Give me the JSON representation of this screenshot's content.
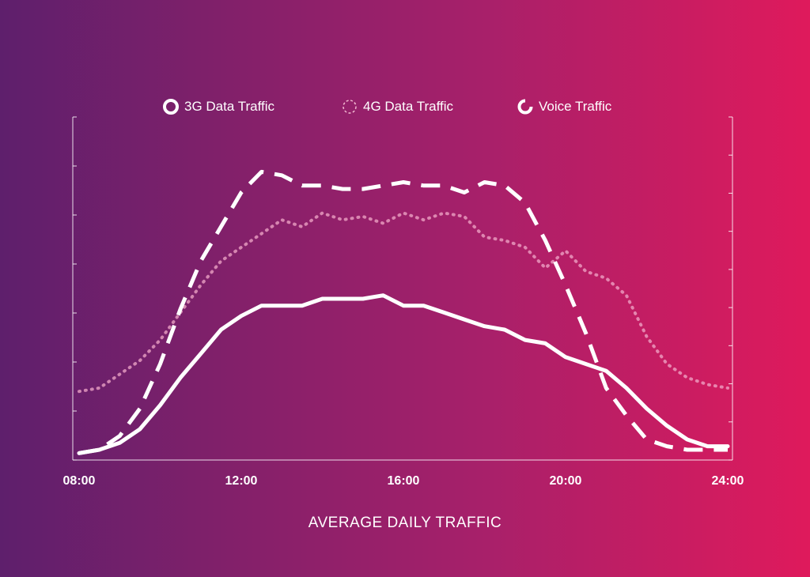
{
  "chart_data": {
    "type": "line",
    "title": "AVERAGE DAILY TRAFFIC",
    "xlabel": "",
    "ylabel": "",
    "x_tick_labels": [
      "08:00",
      "12:00",
      "16:00",
      "20:00",
      "24:00"
    ],
    "xlim": [
      8,
      24
    ],
    "ylim": [
      0,
      100
    ],
    "grid": false,
    "legend_position": "top",
    "colors": {
      "background_start": "#5e1f6c",
      "background_end": "#df1a5c",
      "lines": "#ffffff"
    },
    "series": [
      {
        "name": "3G Data Traffic",
        "style": "solid",
        "x": [
          8,
          8.5,
          9,
          9.5,
          10,
          10.5,
          11,
          11.5,
          12,
          12.5,
          13,
          13.5,
          14,
          14.5,
          15,
          15.5,
          16,
          16.5,
          17,
          17.5,
          18,
          18.5,
          19,
          19.5,
          20,
          20.5,
          21,
          21.5,
          22,
          22.5,
          23,
          23.5,
          24
        ],
        "y": [
          2,
          3,
          5,
          9,
          16,
          24,
          31,
          38,
          42,
          45,
          45,
          45,
          47,
          47,
          47,
          48,
          45,
          45,
          43,
          41,
          39,
          38,
          35,
          34,
          30,
          28,
          26,
          21,
          15,
          10,
          6,
          4,
          4
        ]
      },
      {
        "name": "4G Data Traffic",
        "style": "dotted",
        "x": [
          8,
          8.5,
          9,
          9.5,
          10,
          10.5,
          11,
          11.5,
          12,
          12.5,
          13,
          13.5,
          14,
          14.5,
          15,
          15.5,
          16,
          16.5,
          17,
          17.5,
          18,
          18.5,
          19,
          19.5,
          20,
          20.5,
          21,
          21.5,
          22,
          22.5,
          23,
          23.5,
          24
        ],
        "y": [
          20,
          21,
          25,
          29,
          35,
          43,
          51,
          58,
          62,
          66,
          70,
          68,
          72,
          70,
          71,
          69,
          72,
          70,
          72,
          71,
          65,
          64,
          62,
          56,
          61,
          55,
          53,
          48,
          36,
          28,
          24,
          22,
          21
        ]
      },
      {
        "name": "Voice Traffic",
        "style": "dashed",
        "x": [
          8,
          8.5,
          9,
          9.5,
          10,
          10.5,
          11,
          11.5,
          12,
          12.5,
          13,
          13.5,
          14,
          14.5,
          15,
          15.5,
          16,
          16.5,
          17,
          17.5,
          18,
          18.5,
          19,
          19.5,
          20,
          20.5,
          21,
          21.5,
          22,
          22.5,
          23,
          23.5,
          24
        ],
        "y": [
          2,
          3,
          7,
          15,
          28,
          44,
          58,
          68,
          78,
          84,
          83,
          80,
          80,
          79,
          79,
          80,
          81,
          80,
          80,
          78,
          81,
          80,
          75,
          64,
          51,
          37,
          21,
          13,
          6,
          4,
          3,
          3,
          3
        ]
      }
    ]
  }
}
